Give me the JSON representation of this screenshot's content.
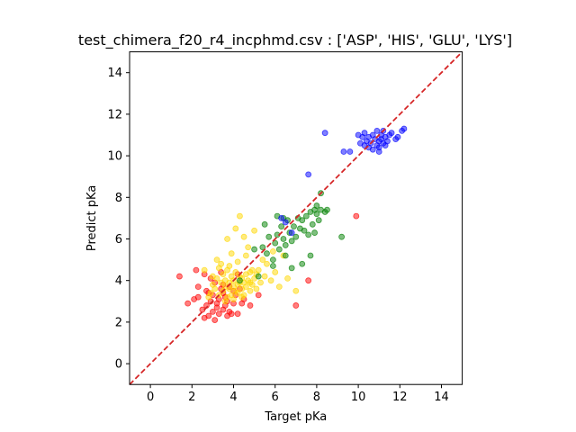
{
  "chart_data": {
    "type": "scatter",
    "title": "test_chimera_f20_r4_incphmd.csv : ['ASP', 'HIS', 'GLU', 'LYS']",
    "xlabel": "Target pKa",
    "ylabel": "Predict pKa",
    "xlim": [
      -1,
      15
    ],
    "ylim": [
      -1,
      15
    ],
    "xticks": [
      "0",
      "2",
      "4",
      "6",
      "8",
      "10",
      "12",
      "14"
    ],
    "yticks": [
      "0",
      "2",
      "4",
      "6",
      "8",
      "10",
      "12",
      "14"
    ],
    "grid": false,
    "legend": "none",
    "reference_line": {
      "x": [
        -1,
        15
      ],
      "y": [
        -1,
        15
      ],
      "color": "#d62728",
      "style": "dashed"
    },
    "series": [
      {
        "color": "#ff0000",
        "points": [
          [
            1.4,
            4.2
          ],
          [
            1.8,
            2.9
          ],
          [
            2.1,
            3.1
          ],
          [
            2.2,
            4.5
          ],
          [
            2.3,
            3.2
          ],
          [
            2.5,
            2.6
          ],
          [
            2.6,
            2.2
          ],
          [
            2.7,
            2.8
          ],
          [
            2.7,
            3.5
          ],
          [
            2.8,
            2.3
          ],
          [
            2.9,
            3.0
          ],
          [
            3.0,
            2.5
          ],
          [
            3.0,
            3.3
          ],
          [
            3.1,
            2.1
          ],
          [
            3.1,
            3.9
          ],
          [
            3.2,
            2.7
          ],
          [
            3.2,
            2.9
          ],
          [
            3.3,
            2.4
          ],
          [
            3.3,
            3.1
          ],
          [
            3.4,
            3.6
          ],
          [
            3.5,
            2.6
          ],
          [
            3.5,
            3.4
          ],
          [
            3.6,
            2.8
          ],
          [
            3.6,
            3.2
          ],
          [
            3.7,
            2.3
          ],
          [
            3.7,
            3.0
          ],
          [
            3.8,
            2.5
          ],
          [
            3.8,
            3.7
          ],
          [
            3.9,
            2.4
          ],
          [
            4.0,
            2.9
          ],
          [
            4.1,
            3.3
          ],
          [
            4.2,
            2.4
          ],
          [
            4.2,
            4.3
          ],
          [
            4.3,
            3.6
          ],
          [
            4.4,
            2.9
          ],
          [
            4.5,
            3.1
          ],
          [
            2.3,
            3.7
          ],
          [
            2.6,
            4.3
          ],
          [
            3.4,
            4.4
          ],
          [
            2.9,
            4.1
          ],
          [
            4.8,
            2.8
          ],
          [
            5.2,
            3.3
          ],
          [
            7.0,
            2.8
          ],
          [
            7.6,
            4.0
          ],
          [
            9.9,
            7.1
          ],
          [
            3.5,
            3.8
          ],
          [
            2.8,
            3.4
          ],
          [
            4.0,
            3.5
          ]
        ]
      },
      {
        "color": "#ffd700",
        "points": [
          [
            2.9,
            3.4
          ],
          [
            3.0,
            3.8
          ],
          [
            3.1,
            3.6
          ],
          [
            3.2,
            4.1
          ],
          [
            3.3,
            3.3
          ],
          [
            3.4,
            3.9
          ],
          [
            3.5,
            3.5
          ],
          [
            3.5,
            4.3
          ],
          [
            3.6,
            3.7
          ],
          [
            3.6,
            4.0
          ],
          [
            3.7,
            3.2
          ],
          [
            3.7,
            4.5
          ],
          [
            3.8,
            3.6
          ],
          [
            3.8,
            3.9
          ],
          [
            3.9,
            3.3
          ],
          [
            3.9,
            4.2
          ],
          [
            4.0,
            3.7
          ],
          [
            4.0,
            4.0
          ],
          [
            4.1,
            3.5
          ],
          [
            4.1,
            4.4
          ],
          [
            4.2,
            3.8
          ],
          [
            4.2,
            3.4
          ],
          [
            4.3,
            3.9
          ],
          [
            4.3,
            4.2
          ],
          [
            4.4,
            3.6
          ],
          [
            4.4,
            4.1
          ],
          [
            4.5,
            3.3
          ],
          [
            4.5,
            3.9
          ],
          [
            4.6,
            4.3
          ],
          [
            4.6,
            3.7
          ],
          [
            4.7,
            4.0
          ],
          [
            4.8,
            3.5
          ],
          [
            4.8,
            4.4
          ],
          [
            4.9,
            3.8
          ],
          [
            5.0,
            4.1
          ],
          [
            5.1,
            3.6
          ],
          [
            5.2,
            4.5
          ],
          [
            5.3,
            3.9
          ],
          [
            5.5,
            4.2
          ],
          [
            5.8,
            4.0
          ],
          [
            6.0,
            4.4
          ],
          [
            6.2,
            3.7
          ],
          [
            6.6,
            4.1
          ],
          [
            7.0,
            3.5
          ],
          [
            4.3,
            7.1
          ],
          [
            4.1,
            6.5
          ],
          [
            3.9,
            5.3
          ],
          [
            3.7,
            6.0
          ],
          [
            4.5,
            6.1
          ],
          [
            5.0,
            6.4
          ],
          [
            4.7,
            5.6
          ],
          [
            5.4,
            5.0
          ],
          [
            3.2,
            5.0
          ],
          [
            3.4,
            4.8
          ],
          [
            2.6,
            4.5
          ],
          [
            3.8,
            4.7
          ],
          [
            4.2,
            4.9
          ],
          [
            4.9,
            4.5
          ],
          [
            5.6,
            4.8
          ],
          [
            6.4,
            5.2
          ],
          [
            4.0,
            3.1
          ],
          [
            3.6,
            3.0
          ],
          [
            4.4,
            3.2
          ],
          [
            2.8,
            3.2
          ],
          [
            3.3,
            4.6
          ],
          [
            4.6,
            5.2
          ],
          [
            5.9,
            5.4
          ],
          [
            3.0,
            4.2
          ],
          [
            4.8,
            3.9
          ],
          [
            5.1,
            4.3
          ]
        ]
      },
      {
        "color": "#008000",
        "points": [
          [
            4.3,
            4.0
          ],
          [
            5.2,
            4.2
          ],
          [
            5.4,
            5.6
          ],
          [
            5.6,
            5.3
          ],
          [
            5.7,
            6.1
          ],
          [
            5.9,
            5.0
          ],
          [
            6.0,
            5.8
          ],
          [
            6.1,
            6.2
          ],
          [
            6.2,
            5.5
          ],
          [
            6.3,
            6.6
          ],
          [
            6.4,
            6.0
          ],
          [
            6.5,
            5.7
          ],
          [
            6.6,
            6.9
          ],
          [
            6.7,
            6.3
          ],
          [
            6.8,
            5.9
          ],
          [
            6.9,
            6.6
          ],
          [
            7.0,
            6.1
          ],
          [
            7.1,
            7.0
          ],
          [
            7.2,
            6.5
          ],
          [
            7.3,
            6.9
          ],
          [
            7.4,
            6.4
          ],
          [
            7.5,
            7.1
          ],
          [
            7.6,
            6.2
          ],
          [
            7.7,
            7.3
          ],
          [
            7.8,
            6.7
          ],
          [
            7.9,
            7.4
          ],
          [
            8.0,
            7.2
          ],
          [
            8.1,
            6.9
          ],
          [
            8.2,
            7.4
          ],
          [
            8.4,
            7.3
          ],
          [
            8.5,
            7.4
          ],
          [
            8.2,
            8.2
          ],
          [
            8.0,
            7.6
          ],
          [
            7.9,
            6.3
          ],
          [
            9.2,
            6.1
          ],
          [
            5.5,
            6.7
          ],
          [
            6.1,
            7.1
          ],
          [
            7.3,
            4.8
          ],
          [
            6.8,
            4.6
          ],
          [
            5.9,
            4.7
          ],
          [
            6.5,
            5.2
          ],
          [
            7.7,
            5.2
          ],
          [
            6.4,
            7.0
          ],
          [
            5.0,
            5.5
          ]
        ]
      },
      {
        "color": "#0000ff",
        "points": [
          [
            8.4,
            11.1
          ],
          [
            9.3,
            10.2
          ],
          [
            9.6,
            10.2
          ],
          [
            10.0,
            11.0
          ],
          [
            10.1,
            10.6
          ],
          [
            10.2,
            10.9
          ],
          [
            10.3,
            10.5
          ],
          [
            10.3,
            11.1
          ],
          [
            10.4,
            10.7
          ],
          [
            10.5,
            10.4
          ],
          [
            10.5,
            10.9
          ],
          [
            10.6,
            10.6
          ],
          [
            10.7,
            11.0
          ],
          [
            10.7,
            10.3
          ],
          [
            10.8,
            10.8
          ],
          [
            10.9,
            10.5
          ],
          [
            10.9,
            11.2
          ],
          [
            11.0,
            10.7
          ],
          [
            11.0,
            10.4
          ],
          [
            11.1,
            11.0
          ],
          [
            11.1,
            10.8
          ],
          [
            11.2,
            10.6
          ],
          [
            11.2,
            11.2
          ],
          [
            11.3,
            10.9
          ],
          [
            11.3,
            10.5
          ],
          [
            11.4,
            10.7
          ],
          [
            11.5,
            11.0
          ],
          [
            11.0,
            10.2
          ],
          [
            11.8,
            10.8
          ],
          [
            11.9,
            10.9
          ],
          [
            12.1,
            11.2
          ],
          [
            12.2,
            11.3
          ],
          [
            7.6,
            9.1
          ],
          [
            6.5,
            6.8
          ],
          [
            6.3,
            7.0
          ],
          [
            6.8,
            6.3
          ],
          [
            11.6,
            11.1
          ]
        ]
      }
    ]
  }
}
